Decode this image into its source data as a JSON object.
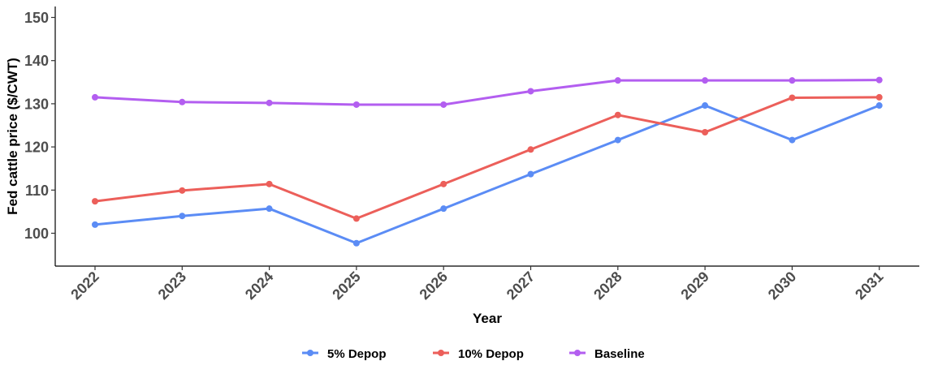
{
  "chart_data": {
    "type": "line",
    "title": "",
    "xlabel": "Year",
    "ylabel": "Fed cattle price ($/CWT)",
    "x": [
      "2022",
      "2023",
      "2024",
      "2025",
      "2026",
      "2027",
      "2028",
      "2029",
      "2030",
      "2031"
    ],
    "ylim": [
      92,
      153
    ],
    "yticks": [
      100,
      110,
      120,
      130,
      140,
      150
    ],
    "grid": false,
    "legend_position": "bottom",
    "series": [
      {
        "name": "5% Depop",
        "color": "#5b8cf5",
        "values": [
          102.0,
          104.0,
          105.7,
          97.7,
          105.7,
          113.7,
          121.6,
          129.6,
          121.6,
          129.6
        ]
      },
      {
        "name": "10% Depop",
        "color": "#ec5f5a",
        "values": [
          107.4,
          109.9,
          111.4,
          103.4,
          111.4,
          119.4,
          127.4,
          123.4,
          131.4,
          131.5
        ]
      },
      {
        "name": "Baseline",
        "color": "#b35ef0",
        "values": [
          131.5,
          130.4,
          130.2,
          129.8,
          129.8,
          132.9,
          135.4,
          135.4,
          135.4,
          135.5
        ]
      }
    ]
  }
}
